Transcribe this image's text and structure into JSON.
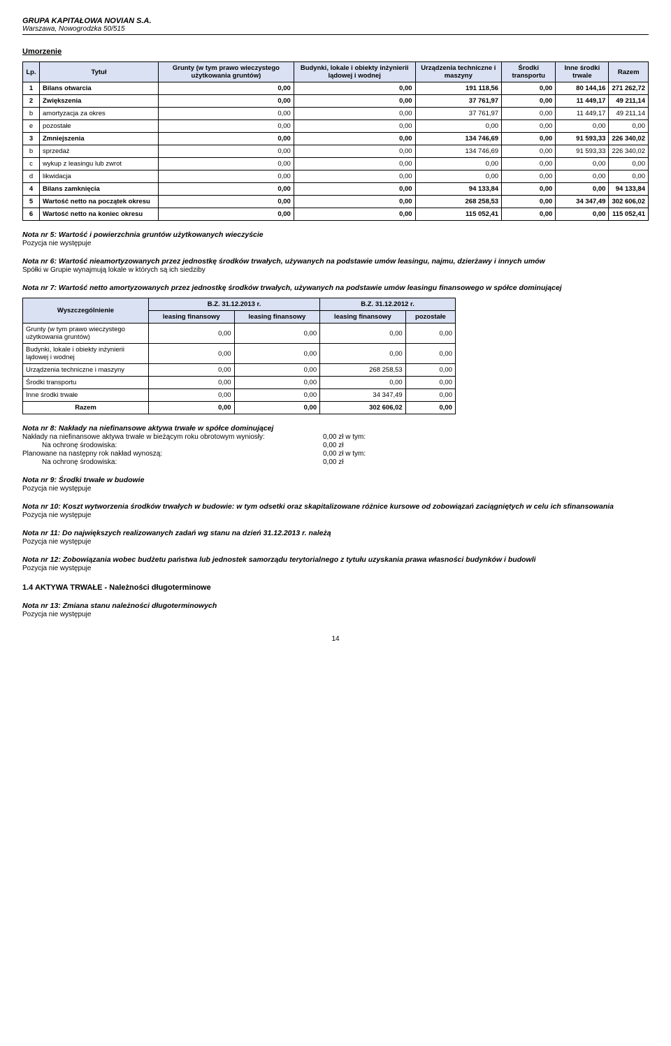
{
  "header": {
    "company": "GRUPA KAPITAŁOWA NOVIAN S.A.",
    "address": "Warszawa, Nowogrodzka 50/515"
  },
  "amort": {
    "title": "Umorzenie",
    "columns": [
      "Lp.",
      "Tytuł",
      "Grunty (w tym prawo wieczystego użytkowania gruntów)",
      "Budynki, lokale i obiekty inżynierii lądowej i wodnej",
      "Urządzenia techniczne i maszyny",
      "Środki transportu",
      "Inne środki trwale",
      "Razem"
    ],
    "rows": [
      {
        "lp": "1",
        "label": "Bilans otwarcia",
        "v": [
          "0,00",
          "0,00",
          "191 118,56",
          "0,00",
          "80 144,16",
          "271 262,72"
        ],
        "bold": true
      },
      {
        "lp": "2",
        "label": "Zwiększenia",
        "v": [
          "0,00",
          "0,00",
          "37 761,97",
          "0,00",
          "11 449,17",
          "49 211,14"
        ],
        "bold": true
      },
      {
        "lp": "b",
        "label": "amortyzacja za okres",
        "v": [
          "0,00",
          "0,00",
          "37 761,97",
          "0,00",
          "11 449,17",
          "49 211,14"
        ]
      },
      {
        "lp": "e",
        "label": "pozostałe",
        "v": [
          "0,00",
          "0,00",
          "0,00",
          "0,00",
          "0,00",
          "0,00"
        ]
      },
      {
        "lp": "3",
        "label": "Zmniejszenia",
        "v": [
          "0,00",
          "0,00",
          "134 746,69",
          "0,00",
          "91 593,33",
          "226 340,02"
        ],
        "bold": true
      },
      {
        "lp": "b",
        "label": "sprzedaż",
        "v": [
          "0,00",
          "0,00",
          "134 746,69",
          "0,00",
          "91 593,33",
          "226 340,02"
        ]
      },
      {
        "lp": "c",
        "label": "wykup z leasingu lub zwrot",
        "v": [
          "0,00",
          "0,00",
          "0,00",
          "0,00",
          "0,00",
          "0,00"
        ]
      },
      {
        "lp": "d",
        "label": "likwidacja",
        "v": [
          "0,00",
          "0,00",
          "0,00",
          "0,00",
          "0,00",
          "0,00"
        ]
      },
      {
        "lp": "4",
        "label": "Bilans zamknięcia",
        "v": [
          "0,00",
          "0,00",
          "94 133,84",
          "0,00",
          "0,00",
          "94 133,84"
        ],
        "bold": true
      },
      {
        "lp": "5",
        "label": "Wartość netto na początek okresu",
        "v": [
          "0,00",
          "0,00",
          "268 258,53",
          "0,00",
          "34 347,49",
          "302 606,02"
        ],
        "bold": true
      },
      {
        "lp": "6",
        "label": "Wartość netto na koniec okresu",
        "v": [
          "0,00",
          "0,00",
          "115 052,41",
          "0,00",
          "0,00",
          "115 052,41"
        ],
        "bold": true
      }
    ]
  },
  "note5": {
    "title": "Nota nr 5: Wartość i powierzchnia gruntów użytkowanych wieczyście",
    "body": "Pozycja nie występuje"
  },
  "note6": {
    "title": "Nota nr 6: Wartość nieamortyzowanych przez jednostkę środków trwałych, używanych na podstawie umów leasingu, najmu, dzierżawy i innych umów",
    "body": "Spółki w Grupie wynajmują lokale w których są ich siedziby"
  },
  "note7": {
    "title": "Nota nr 7: Wartość netto amortyzowanych przez jednostkę środków trwałych, używanych na podstawie umów leasingu finansowego w spółce dominującej",
    "col_group_left": "B.Z. 31.12.2013 r.",
    "col_group_right": "B.Z. 31.12.2012 r.",
    "sub_cols": [
      "leasing finansowy",
      "leasing finansowy",
      "leasing finansowy",
      "pozostałe"
    ],
    "head_label": "Wyszczególnienie",
    "rows": [
      {
        "label": "Grunty (w tym prawo wieczystego użytkowania gruntów)",
        "v": [
          "0,00",
          "0,00",
          "0,00",
          "0,00"
        ]
      },
      {
        "label": "Budynki, lokale i obiekty inżynierii lądowej i wodnej",
        "v": [
          "0,00",
          "0,00",
          "0,00",
          "0,00"
        ]
      },
      {
        "label": "Urządzenia techniczne i maszyny",
        "v": [
          "0,00",
          "0,00",
          "268 258,53",
          "0,00"
        ]
      },
      {
        "label": "Środki transportu",
        "v": [
          "0,00",
          "0,00",
          "0,00",
          "0,00"
        ]
      },
      {
        "label": "Inne środki trwałe",
        "v": [
          "0,00",
          "0,00",
          "34 347,49",
          "0,00"
        ]
      }
    ],
    "total": {
      "label": "Razem",
      "v": [
        "0,00",
        "0,00",
        "302 606,02",
        "0,00"
      ]
    }
  },
  "note8": {
    "title": "Nota nr 8: Nakłady na niefinansowe aktywa trwałe w spółce dominującej",
    "lines": [
      {
        "l": "Nakłady na niefinansowe aktywa trwałe w bieżącym roku obrotowym wyniosły:",
        "r": "0,00 zł  w tym:"
      },
      {
        "l": "Na ochronę środowiska:",
        "r": "0,00 zł",
        "indent": true
      },
      {
        "l": "Planowane na następny rok nakład wynoszą:",
        "r": "0,00 zł  w tym:"
      },
      {
        "l": "Na ochronę środowiska:",
        "r": "0,00 zł",
        "indent": true
      }
    ]
  },
  "note9": {
    "title": "Nota nr 9: Środki trwałe w budowie",
    "body": "Pozycja nie występuje"
  },
  "note10": {
    "title": "Nota nr 10: Koszt wytworzenia środków trwałych w budowie: w tym odsetki oraz skapitalizowane różnice kursowe od zobowiązań zaciągniętych w celu ich sfinansowania",
    "body": "Pozycja nie występuje"
  },
  "note11": {
    "title": "Nota nr 11: Do największych realizowanych zadań wg stanu na dzień 31.12.2013 r. należą",
    "body": "Pozycja nie występuje"
  },
  "note12": {
    "title": "Nota nr 12: Zobowiązania wobec budżetu państwa lub jednostek samorządu terytorialnego z tytułu uzyskania prawa własności budynków i budowli",
    "body": "Pozycja nie występuje"
  },
  "section14": "1.4 AKTYWA TRWAŁE - Należności długoterminowe",
  "note13": {
    "title": "Nota nr 13: Zmiana stanu należności długoterminowych",
    "body": "Pozycja nie występuje"
  },
  "page_num": "14"
}
